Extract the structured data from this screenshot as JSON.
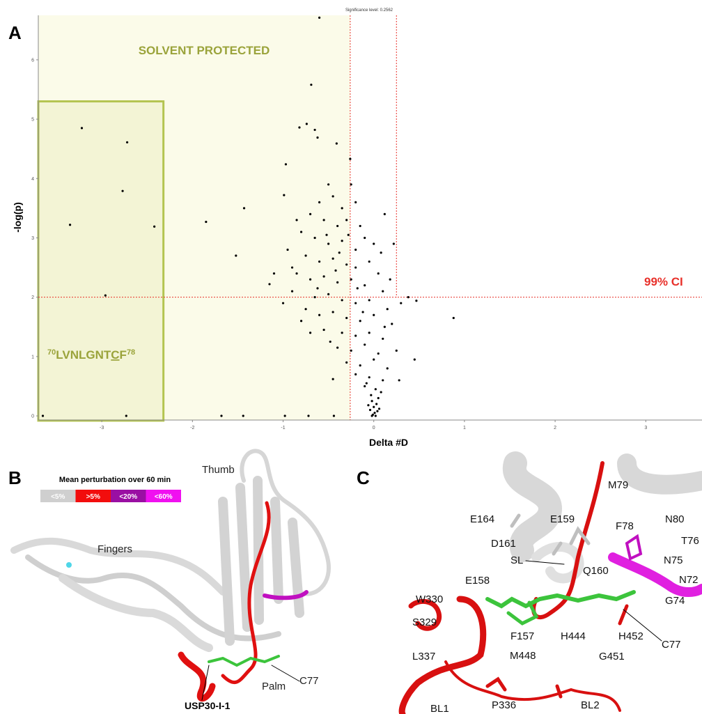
{
  "chart_data": {
    "type": "scatter",
    "title": "Significance level: 0.2562",
    "panel_label": "A",
    "x_label": "Delta #D",
    "y_label": "-log(p)",
    "annotations": {
      "protected": "SOLVENT PROTECTED",
      "ci": "99% CI",
      "peptide": {
        "start": "70",
        "sequence": "LVNLGNT",
        "underlined": "C",
        "last": "F",
        "end": "78"
      }
    },
    "xlim": [
      -3.7,
      3.62
    ],
    "ylim": [
      -0.07,
      6.75
    ],
    "xticks": [
      -3,
      -2,
      -1,
      0,
      1,
      2,
      3
    ],
    "yticks": [
      0,
      1,
      2,
      3,
      4,
      5,
      6
    ],
    "grid": false,
    "point_color": "#000000",
    "threshold_color": "#e8302a",
    "shade_color": "#fbfbe9",
    "box_color": "#b4c451",
    "x_thresholds": [
      -0.26,
      0.25
    ],
    "y_threshold": 2,
    "highlight_box": {
      "x": [
        -3.7,
        -2.32
      ],
      "y": [
        -0.08,
        5.3
      ]
    },
    "x": [
      -0.6,
      -0.69,
      -3.22,
      -2.72,
      -2.77,
      -3.35,
      -2.42,
      -2.96,
      -3.65,
      -2.73,
      -1.85,
      -1.43,
      -1.52,
      -0.97,
      -0.26,
      -0.74,
      0.22,
      0.88,
      0.45,
      0.12,
      -1.15,
      -1.68,
      -1.44,
      -0.72,
      -0.44,
      -0.98,
      -0.45,
      0.38,
      0.47,
      -0.82,
      -0.65,
      -0.62,
      -0.41,
      -0.99,
      -0.5,
      -0.45,
      -0.6,
      -0.35,
      -0.25,
      -0.2,
      -0.7,
      -0.55,
      -0.4,
      -0.3,
      -0.15,
      -0.8,
      -0.65,
      -0.5,
      -0.35,
      -0.2,
      -0.1,
      0.0,
      -0.75,
      -0.6,
      -0.45,
      -0.3,
      -0.2,
      -0.05,
      0.05,
      -0.85,
      -0.7,
      -0.55,
      -0.4,
      -0.25,
      -0.1,
      0.1,
      -0.9,
      -0.65,
      -0.5,
      -0.35,
      -0.2,
      -0.05,
      0.15,
      -0.75,
      -0.6,
      -0.45,
      -0.3,
      -0.15,
      0.0,
      0.2,
      -0.55,
      -0.35,
      -0.2,
      -0.05,
      0.1,
      -0.4,
      -0.25,
      -0.1,
      0.05,
      0.25,
      -0.3,
      -0.15,
      0.0,
      0.15,
      -0.2,
      -0.05,
      0.1,
      -0.1,
      0.02,
      -0.03,
      0.05,
      -0.02,
      0.03,
      0.0,
      -0.04,
      0.04,
      0.01,
      -0.01,
      0.02,
      -0.02,
      0.06,
      -0.06,
      0.08,
      -0.08,
      0.12,
      -0.12,
      0.18,
      -0.9,
      -1.0,
      -0.8,
      -0.7,
      -0.95,
      -0.85,
      -1.1,
      0.3,
      0.28,
      -0.48,
      -0.62,
      -0.38,
      -0.28,
      -0.18,
      0.08,
      -0.52,
      -0.42
    ],
    "values": [
      6.71,
      5.58,
      4.85,
      4.61,
      3.79,
      3.22,
      3.19,
      2.03,
      0,
      0,
      3.27,
      3.5,
      2.7,
      4.24,
      4.33,
      4.92,
      2.9,
      1.65,
      0.95,
      3.4,
      2.22,
      0,
      0,
      0,
      0,
      0,
      0.62,
      2.0,
      1.94,
      4.86,
      4.82,
      4.69,
      4.59,
      3.72,
      3.9,
      3.7,
      3.6,
      3.5,
      3.9,
      3.6,
      3.4,
      3.3,
      3.2,
      3.3,
      3.2,
      3.1,
      3.0,
      2.9,
      2.95,
      2.8,
      3.0,
      2.9,
      2.7,
      2.6,
      2.65,
      2.55,
      2.5,
      2.6,
      2.4,
      2.4,
      2.3,
      2.35,
      2.25,
      2.3,
      2.2,
      2.1,
      2.1,
      2.0,
      2.05,
      1.95,
      1.9,
      1.95,
      1.8,
      1.8,
      1.7,
      1.75,
      1.65,
      1.6,
      1.7,
      1.55,
      1.45,
      1.4,
      1.35,
      1.4,
      1.3,
      1.15,
      1.1,
      1.2,
      1.05,
      1.1,
      0.9,
      0.85,
      0.95,
      0.8,
      0.7,
      0.65,
      0.6,
      0.5,
      0.45,
      0.35,
      0.3,
      0.25,
      0.2,
      0.15,
      0.1,
      0.08,
      0.05,
      0.02,
      0.0,
      0.0,
      0.12,
      0.18,
      0.4,
      0.55,
      1.5,
      1.75,
      2.3,
      2.5,
      1.9,
      1.6,
      1.4,
      2.8,
      3.3,
      2.4,
      1.9,
      0.6,
      1.25,
      2.15,
      2.75,
      3.05,
      2.15,
      2.75,
      3.05,
      2.45
    ]
  },
  "panel_b": {
    "label": "B",
    "legend_title": "Mean perturbation over 60 min",
    "legend": [
      {
        "label": "<5%",
        "color": "#cfcfcf"
      },
      {
        "label": ">5%",
        "color": "#f20d0d"
      },
      {
        "label": "<20%",
        "color": "#9a0fa3"
      },
      {
        "label": "<60%",
        "color": "#f010f0"
      }
    ],
    "labels": [
      "Thumb",
      "Fingers",
      "Palm",
      "C77",
      "USP30-I-1"
    ]
  },
  "panel_c": {
    "label": "C",
    "labels": [
      "M79",
      "E164",
      "E159",
      "F78",
      "N80",
      "D161",
      "T76",
      "SL",
      "N75",
      "Q160",
      "N72",
      "E158",
      "W330",
      "G74",
      "S329",
      "F157",
      "H444",
      "H452",
      "C77",
      "L337",
      "M448",
      "G451",
      "BL1",
      "P336",
      "BL2"
    ]
  }
}
